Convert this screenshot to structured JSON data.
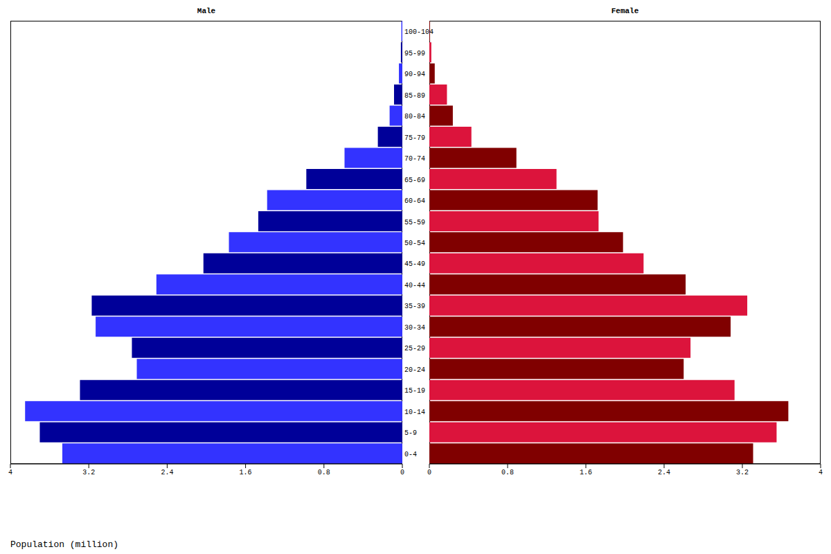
{
  "chart_data": {
    "type": "bar",
    "orientation": "horizontal",
    "x_label": "Population (million)",
    "categories": [
      "0-4",
      "5-9",
      "10-14",
      "15-19",
      "20-24",
      "25-29",
      "30-34",
      "35-39",
      "40-44",
      "45-49",
      "50-54",
      "55-59",
      "60-64",
      "65-69",
      "70-74",
      "75-79",
      "80-84",
      "85-89",
      "90-94",
      "95-99",
      "100-104"
    ],
    "series": [
      {
        "name": "Male",
        "colors": [
          "#3333ff",
          "#000099",
          "#3333ff",
          "#000099",
          "#3333ff",
          "#000099",
          "#3333ff",
          "#000099",
          "#3333ff",
          "#000099",
          "#3333ff",
          "#000099",
          "#3333ff",
          "#000099",
          "#3333ff",
          "#000099",
          "#3333ff",
          "#000099",
          "#3333ff",
          "#000099",
          "#3333ff"
        ],
        "values": [
          3.47,
          3.7,
          3.85,
          3.29,
          2.71,
          2.76,
          3.13,
          3.17,
          2.51,
          2.03,
          1.77,
          1.47,
          1.38,
          0.98,
          0.59,
          0.25,
          0.13,
          0.085,
          0.035,
          0.015,
          0.01
        ]
      },
      {
        "name": "Female",
        "colors": [
          "#800000",
          "#dc143c",
          "#800000",
          "#dc143c",
          "#800000",
          "#dc143c",
          "#800000",
          "#dc143c",
          "#800000",
          "#dc143c",
          "#800000",
          "#dc143c",
          "#800000",
          "#dc143c",
          "#800000",
          "#dc143c",
          "#800000",
          "#dc143c",
          "#800000",
          "#dc143c",
          "#800000"
        ],
        "values": [
          3.31,
          3.55,
          3.67,
          3.12,
          2.6,
          2.67,
          3.08,
          3.25,
          2.62,
          2.19,
          1.98,
          1.73,
          1.72,
          1.3,
          0.89,
          0.43,
          0.24,
          0.18,
          0.055,
          0.02,
          0.007
        ]
      }
    ],
    "xlim": [
      0,
      4
    ],
    "xticks": [
      0,
      0.8,
      1.6,
      2.4,
      3.2,
      4
    ],
    "grid": false
  }
}
